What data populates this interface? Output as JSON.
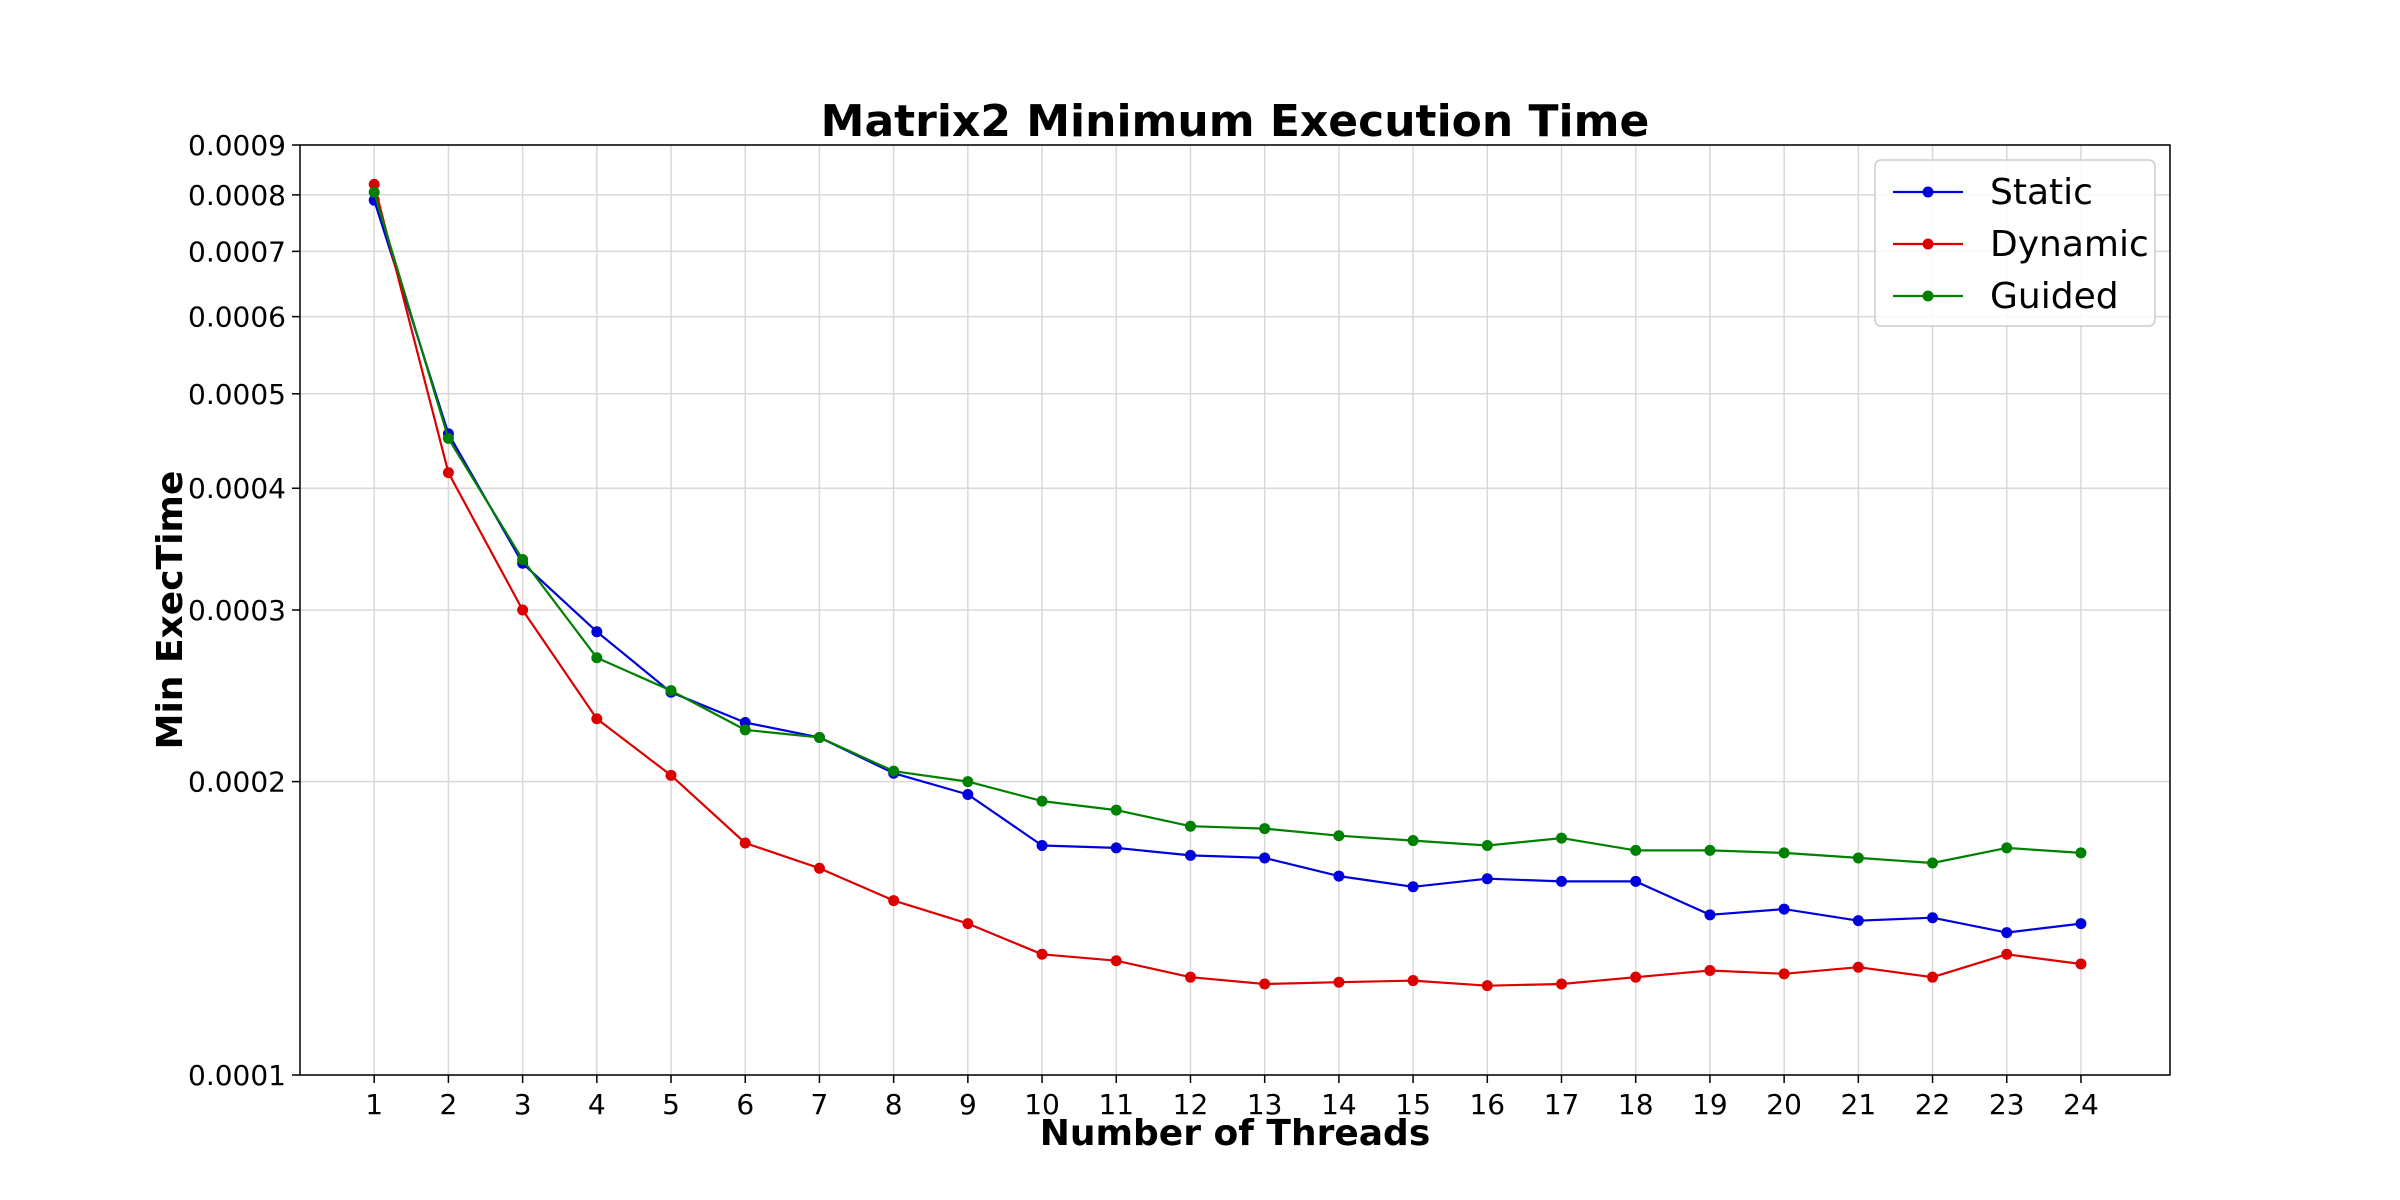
{
  "chart_data": {
    "type": "line",
    "title": "Matrix2 Minimum Execution Time",
    "xlabel": "Number of Threads",
    "ylabel": "Min ExecTime",
    "yscale": "log",
    "ylim": [
      0.0001,
      0.0009
    ],
    "yticks": [
      "0.0001",
      "0.0002",
      "0.0003",
      "0.0004",
      "0.0005",
      "0.0006",
      "0.0007",
      "0.0008",
      "0.0009"
    ],
    "x": [
      1,
      2,
      3,
      4,
      5,
      6,
      7,
      8,
      9,
      10,
      11,
      12,
      13,
      14,
      15,
      16,
      17,
      18,
      19,
      20,
      21,
      22,
      23,
      24
    ],
    "grid": true,
    "legend_position": "top-right",
    "series": [
      {
        "name": "Static",
        "color": "#0000dd",
        "values": [
          0.00079,
          0.000455,
          0.000335,
          0.000285,
          0.000247,
          0.00023,
          0.000222,
          0.000204,
          0.000194,
          0.000172,
          0.000171,
          0.000168,
          0.000167,
          0.00016,
          0.000156,
          0.000159,
          0.000158,
          0.000158,
          0.000146,
          0.000148,
          0.000144,
          0.000145,
          0.00014,
          0.000143
        ]
      },
      {
        "name": "Dynamic",
        "color": "#dd0000",
        "values": [
          0.00082,
          0.000415,
          0.0003,
          0.000232,
          0.000203,
          0.000173,
          0.000163,
          0.000151,
          0.000143,
          0.000133,
          0.000131,
          0.000126,
          0.000124,
          0.0001245,
          0.000125,
          0.0001235,
          0.000124,
          0.000126,
          0.000128,
          0.000127,
          0.000129,
          0.000126,
          0.000133,
          0.00013
        ]
      },
      {
        "name": "Guided",
        "color": "#008000",
        "values": [
          0.000805,
          0.00045,
          0.000338,
          0.000268,
          0.000248,
          0.000226,
          0.000222,
          0.000205,
          0.0002,
          0.000191,
          0.000187,
          0.00018,
          0.000179,
          0.000176,
          0.000174,
          0.000172,
          0.000175,
          0.00017,
          0.00017,
          0.000169,
          0.000167,
          0.000165,
          0.000171,
          0.000169
        ]
      }
    ]
  }
}
